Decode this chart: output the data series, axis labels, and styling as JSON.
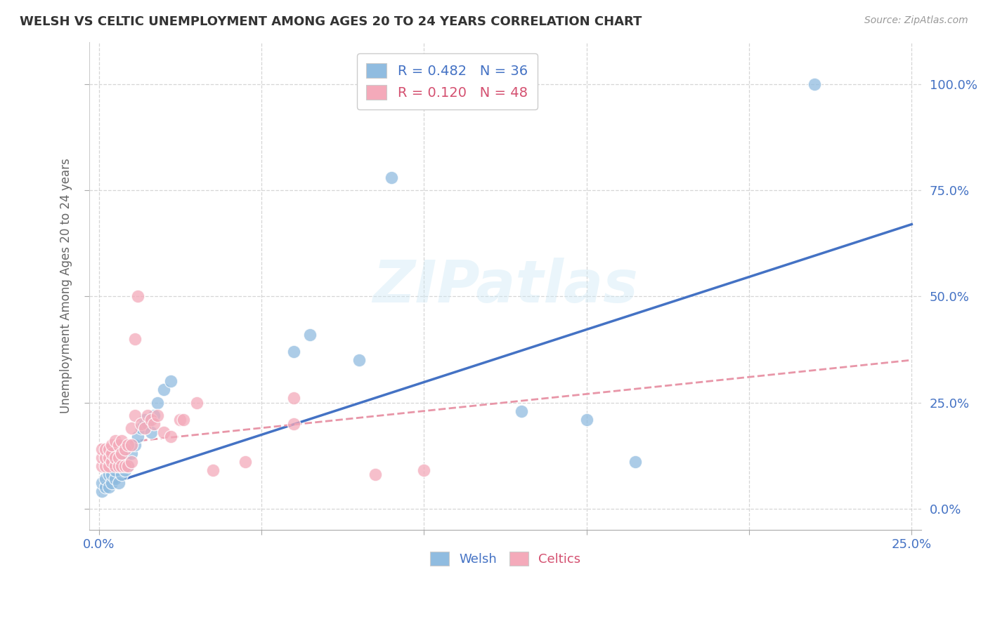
{
  "title": "WELSH VS CELTIC UNEMPLOYMENT AMONG AGES 20 TO 24 YEARS CORRELATION CHART",
  "source": "Source: ZipAtlas.com",
  "ylabel": "Unemployment Among Ages 20 to 24 years",
  "xlim": [
    -0.003,
    0.253
  ],
  "ylim": [
    -0.05,
    1.1
  ],
  "xtick_positions": [
    0.0,
    0.25
  ],
  "xtick_labels": [
    "0.0%",
    "25.0%"
  ],
  "ytick_positions": [
    0.0,
    0.25,
    0.5,
    0.75,
    1.0
  ],
  "ytick_labels": [
    "0.0%",
    "25.0%",
    "50.0%",
    "75.0%",
    "100.0%"
  ],
  "yticks_side": "right",
  "welsh_R": 0.482,
  "welsh_N": 36,
  "celtics_R": 0.12,
  "celtics_N": 48,
  "welsh_color": "#90bce0",
  "celtics_color": "#f4aaba",
  "welsh_line_color": "#4472c4",
  "celtics_line_color": "#e896a8",
  "watermark": "ZIPatlas",
  "welsh_trendline_x0": 0.0,
  "welsh_trendline_y0": 0.05,
  "welsh_trendline_x1": 0.25,
  "welsh_trendline_y1": 0.67,
  "celtics_trendline_x0": 0.0,
  "celtics_trendline_y0": 0.15,
  "celtics_trendline_x1": 0.25,
  "celtics_trendline_y1": 0.35,
  "welsh_x": [
    0.001,
    0.001,
    0.002,
    0.002,
    0.003,
    0.003,
    0.004,
    0.004,
    0.005,
    0.005,
    0.006,
    0.006,
    0.007,
    0.007,
    0.008,
    0.008,
    0.009,
    0.01,
    0.011,
    0.012,
    0.013,
    0.014,
    0.015,
    0.016,
    0.017,
    0.018,
    0.02,
    0.022,
    0.06,
    0.065,
    0.08,
    0.09,
    0.13,
    0.15,
    0.165,
    0.22
  ],
  "welsh_y": [
    0.04,
    0.06,
    0.05,
    0.07,
    0.05,
    0.08,
    0.06,
    0.08,
    0.07,
    0.09,
    0.06,
    0.1,
    0.08,
    0.11,
    0.09,
    0.12,
    0.1,
    0.13,
    0.15,
    0.17,
    0.19,
    0.21,
    0.2,
    0.18,
    0.22,
    0.25,
    0.28,
    0.3,
    0.37,
    0.41,
    0.35,
    0.78,
    0.23,
    0.21,
    0.11,
    1.0
  ],
  "celtics_x": [
    0.001,
    0.001,
    0.001,
    0.002,
    0.002,
    0.002,
    0.003,
    0.003,
    0.003,
    0.004,
    0.004,
    0.004,
    0.005,
    0.005,
    0.005,
    0.006,
    0.006,
    0.006,
    0.007,
    0.007,
    0.007,
    0.008,
    0.008,
    0.009,
    0.009,
    0.01,
    0.01,
    0.01,
    0.011,
    0.011,
    0.012,
    0.013,
    0.014,
    0.015,
    0.016,
    0.017,
    0.018,
    0.02,
    0.022,
    0.025,
    0.026,
    0.03,
    0.035,
    0.045,
    0.06,
    0.06,
    0.085,
    0.1
  ],
  "celtics_y": [
    0.1,
    0.12,
    0.14,
    0.1,
    0.12,
    0.14,
    0.1,
    0.12,
    0.14,
    0.11,
    0.13,
    0.15,
    0.1,
    0.12,
    0.16,
    0.1,
    0.12,
    0.15,
    0.1,
    0.13,
    0.16,
    0.1,
    0.14,
    0.1,
    0.15,
    0.11,
    0.15,
    0.19,
    0.22,
    0.4,
    0.5,
    0.2,
    0.19,
    0.22,
    0.21,
    0.2,
    0.22,
    0.18,
    0.17,
    0.21,
    0.21,
    0.25,
    0.09,
    0.11,
    0.26,
    0.2,
    0.08,
    0.09
  ]
}
